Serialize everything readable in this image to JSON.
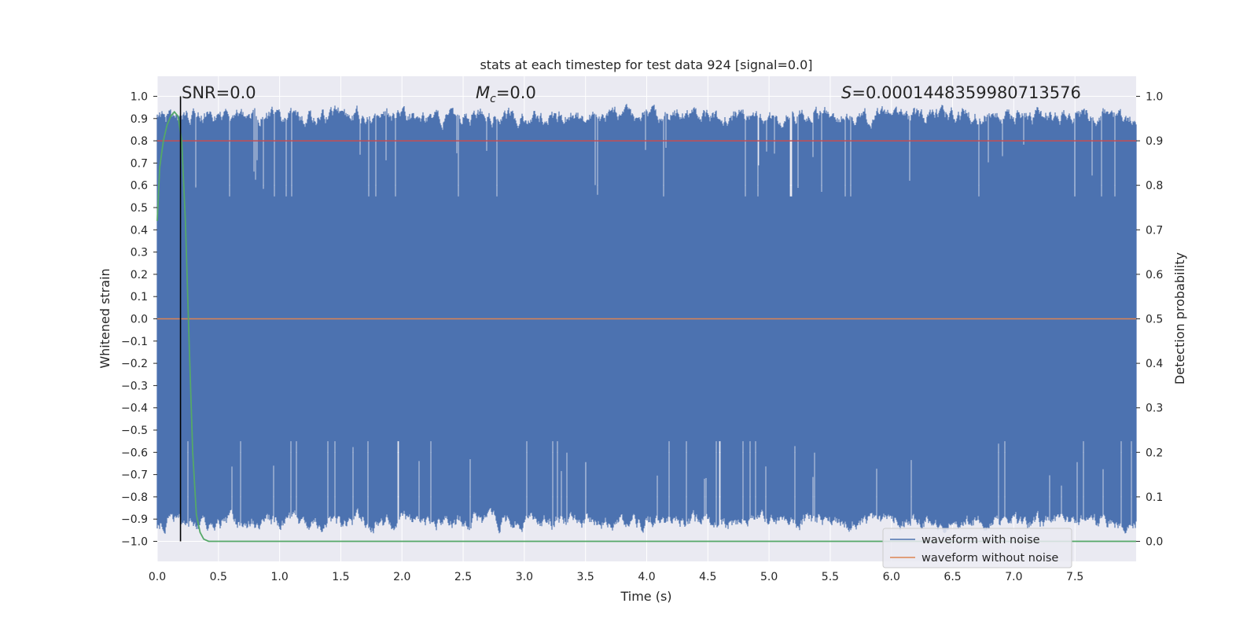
{
  "chart_data": {
    "type": "line",
    "title": "stats at each timestep for test data 924 [signal=0.0]",
    "xlabel": "Time (s)",
    "ylabel_left": "Whitened strain",
    "ylabel_right": "Detection probability",
    "xlim": [
      0.0,
      8.0
    ],
    "ylim_left": [
      -1.09,
      1.09
    ],
    "ylim_right": [
      -0.045,
      1.045
    ],
    "x_ticks": [
      "0.0",
      "0.5",
      "1.0",
      "1.5",
      "2.0",
      "2.5",
      "3.0",
      "3.5",
      "4.0",
      "4.5",
      "5.0",
      "5.5",
      "6.0",
      "6.5",
      "7.0",
      "7.5"
    ],
    "y_ticks_left": [
      "1.0",
      "0.9",
      "0.8",
      "0.7",
      "0.6",
      "0.5",
      "0.4",
      "0.3",
      "0.2",
      "0.1",
      "0.0",
      "−0.1",
      "−0.2",
      "−0.3",
      "−0.4",
      "−0.5",
      "−0.6",
      "−0.7",
      "−0.8",
      "−0.9",
      "−1.0"
    ],
    "y_ticks_right": [
      "1.0",
      "0.9",
      "0.8",
      "0.7",
      "0.6",
      "0.5",
      "0.4",
      "0.3",
      "0.2",
      "0.1",
      "0.0"
    ],
    "grid": true,
    "legend_placement": "bottom-right",
    "annotations": {
      "snr": "SNR=0.0",
      "mc_symbol": "M",
      "mc_sub": "c",
      "mc_value": "=0.0",
      "s_symbol": "S",
      "s_value": "=0.0001448359980713576"
    },
    "marker_time": 0.19,
    "series": [
      {
        "name": "waveform with noise",
        "axis": "left",
        "color": "#4c72b0",
        "description": "dense whitened noise filling roughly -1.0 to 1.0 over 0-8 s"
      },
      {
        "name": "waveform without noise",
        "axis": "left",
        "color": "#dd8452",
        "x": [
          0.0,
          8.0
        ],
        "y": [
          0.0,
          0.0
        ]
      },
      {
        "axis": "right",
        "color": "#55a868",
        "x": [
          0.0,
          0.02,
          0.05,
          0.08,
          0.11,
          0.14,
          0.17,
          0.2,
          0.23,
          0.26,
          0.29,
          0.32,
          0.35,
          0.38,
          0.42,
          0.5,
          1.0,
          2.0,
          4.0,
          6.0,
          8.0
        ],
        "y": [
          0.72,
          0.84,
          0.9,
          0.935,
          0.955,
          0.965,
          0.955,
          0.9,
          0.72,
          0.45,
          0.2,
          0.06,
          0.02,
          0.005,
          0.0,
          0.0,
          0.0,
          0.0,
          0.0,
          0.0,
          0.0
        ]
      }
    ],
    "threshold_line": {
      "axis": "left",
      "y": 0.8,
      "color": "#c44e52"
    },
    "colors": {
      "background": "#eaeaf2",
      "grid": "#ffffff",
      "noise": "#4c72b0",
      "clean": "#dd8452",
      "probability": "#55a868",
      "threshold": "#c44e52",
      "marker": "#000000"
    }
  }
}
